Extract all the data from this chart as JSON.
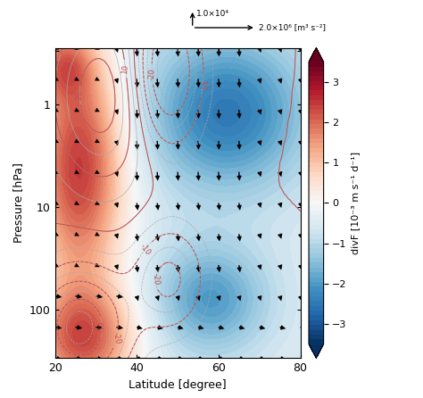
{
  "lat_min": 20,
  "lat_max": 80,
  "pres_min": 0.28,
  "pres_max": 300,
  "xlabel": "Latitude [degree]",
  "ylabel": "Pressure [hPa]",
  "colorbar_label": "divF [10⁻³ m s⁻¹ d⁻¹]",
  "clim": [
    -3.5,
    3.5
  ],
  "arrow_label_x": "2.0×10⁶ [m³ s⁻²]",
  "arrow_label_y": "1.0×10⁴"
}
